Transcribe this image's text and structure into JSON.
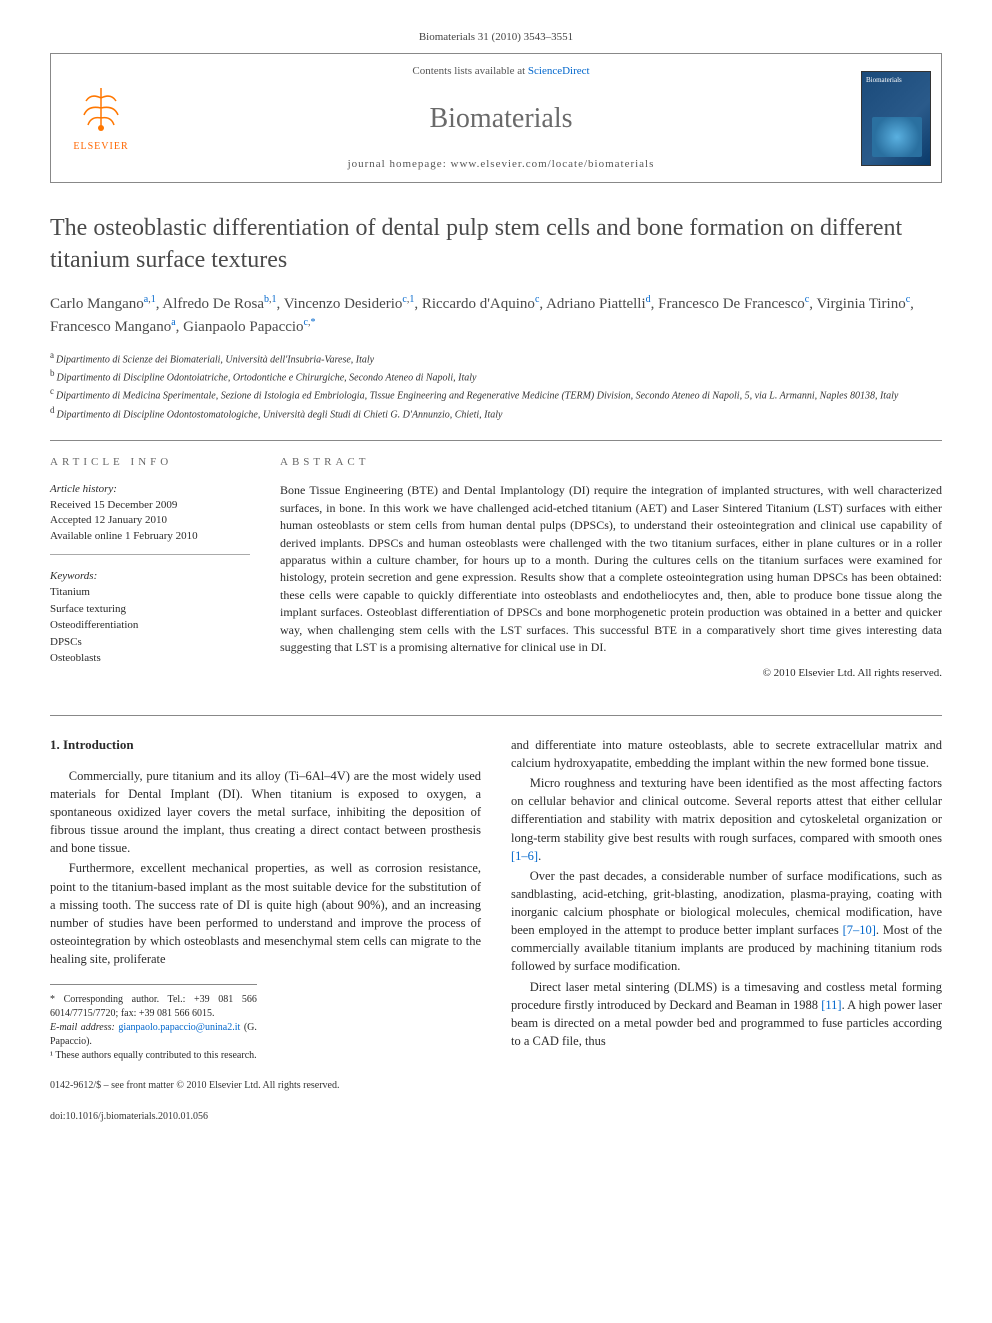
{
  "citation": "Biomaterials 31 (2010) 3543–3551",
  "header": {
    "contents_prefix": "Contents lists available at ",
    "sd": "ScienceDirect",
    "journal": "Biomaterials",
    "homepage_prefix": "journal homepage: ",
    "homepage": "www.elsevier.com/locate/biomaterials",
    "publisher": "ELSEVIER"
  },
  "title": "The osteoblastic differentiation of dental pulp stem cells and bone formation on different titanium surface textures",
  "authors": [
    {
      "name": "Carlo Mangano",
      "aff": "a,1"
    },
    {
      "name": "Alfredo De Rosa",
      "aff": "b,1"
    },
    {
      "name": "Vincenzo Desiderio",
      "aff": "c,1"
    },
    {
      "name": "Riccardo d'Aquino",
      "aff": "c"
    },
    {
      "name": "Adriano Piattelli",
      "aff": "d"
    },
    {
      "name": "Francesco De Francesco",
      "aff": "c"
    },
    {
      "name": "Virginia Tirino",
      "aff": "c"
    },
    {
      "name": "Francesco Mangano",
      "aff": "a"
    },
    {
      "name": "Gianpaolo Papaccio",
      "aff": "c,*"
    }
  ],
  "affiliations": [
    {
      "key": "a",
      "text": "Dipartimento di Scienze dei Biomateriali, Università dell'Insubria-Varese, Italy"
    },
    {
      "key": "b",
      "text": "Dipartimento di Discipline Odontoiatriche, Ortodontiche e Chirurgiche, Secondo Ateneo di Napoli, Italy"
    },
    {
      "key": "c",
      "text": "Dipartimento di Medicina Sperimentale, Sezione di Istologia ed Embriologia, Tissue Engineering and Regenerative Medicine (TERM) Division, Secondo Ateneo di Napoli, 5, via L. Armanni, Naples 80138, Italy"
    },
    {
      "key": "d",
      "text": "Dipartimento di Discipline Odontostomatologiche, Università degli Studi di Chieti G. D'Annunzio, Chieti, Italy"
    }
  ],
  "info": {
    "heading": "ARTICLE INFO",
    "history_label": "Article history:",
    "received": "Received 15 December 2009",
    "accepted": "Accepted 12 January 2010",
    "online": "Available online 1 February 2010",
    "keywords_label": "Keywords:",
    "keywords": [
      "Titanium",
      "Surface texturing",
      "Osteodifferentiation",
      "DPSCs",
      "Osteoblasts"
    ]
  },
  "abstract": {
    "heading": "ABSTRACT",
    "text": "Bone Tissue Engineering (BTE) and Dental Implantology (DI) require the integration of implanted structures, with well characterized surfaces, in bone. In this work we have challenged acid-etched titanium (AET) and Laser Sintered Titanium (LST) surfaces with either human osteoblasts or stem cells from human dental pulps (DPSCs), to understand their osteointegration and clinical use capability of derived implants. DPSCs and human osteoblasts were challenged with the two titanium surfaces, either in plane cultures or in a roller apparatus within a culture chamber, for hours up to a month. During the cultures cells on the titanium surfaces were examined for histology, protein secretion and gene expression. Results show that a complete osteointegration using human DPSCs has been obtained: these cells were capable to quickly differentiate into osteoblasts and endotheliocytes and, then, able to produce bone tissue along the implant surfaces. Osteoblast differentiation of DPSCs and bone morphogenetic protein production was obtained in a better and quicker way, when challenging stem cells with the LST surfaces. This successful BTE in a comparatively short time gives interesting data suggesting that LST is a promising alternative for clinical use in DI.",
    "copyright": "© 2010 Elsevier Ltd. All rights reserved."
  },
  "body": {
    "section_num": "1.",
    "section_title": "Introduction",
    "left_paras": [
      "Commercially, pure titanium and its alloy (Ti–6Al–4V) are the most widely used materials for Dental Implant (DI). When titanium is exposed to oxygen, a spontaneous oxidized layer covers the metal surface, inhibiting the deposition of fibrous tissue around the implant, thus creating a direct contact between prosthesis and bone tissue.",
      "Furthermore, excellent mechanical properties, as well as corrosion resistance, point to the titanium-based implant as the most suitable device for the substitution of a missing tooth. The success rate of DI is quite high (about 90%), and an increasing number of studies have been performed to understand and improve the process of osteointegration by which osteoblasts and mesenchymal stem cells can migrate to the healing site, proliferate"
    ],
    "right_paras": [
      "and differentiate into mature osteoblasts, able to secrete extracellular matrix and calcium hydroxyapatite, embedding the implant within the new formed bone tissue.",
      "Micro roughness and texturing have been identified as the most affecting factors on cellular behavior and clinical outcome. Several reports attest that either cellular differentiation and stability with matrix deposition and cytoskeletal organization or long-term stability give best results with rough surfaces, compared with smooth ones ",
      "Over the past decades, a considerable number of surface modifications, such as sandblasting, acid-etching, grit-blasting, anodization, plasma-praying, coating with inorganic calcium phosphate or biological molecules, chemical modification, have been employed in the attempt to produce better implant surfaces ",
      "Direct laser metal sintering (DLMS) is a timesaving and costless metal forming procedure firstly introduced by Deckard and Beaman in 1988 "
    ],
    "cite1": "[1–6]",
    "cite2": "[7–10]",
    "cite2_tail": ". Most of the commercially available titanium implants are produced by machining titanium rods followed by surface modification.",
    "cite3": "[11]",
    "cite3_tail": ". A high power laser beam is directed on a metal powder bed and programmed to fuse particles according to a CAD file, thus"
  },
  "footnotes": {
    "corr": "* Corresponding author. Tel.: +39 081 566 6014/7715/7720; fax: +39 081 566 6015.",
    "email_label": "E-mail address: ",
    "email": "gianpaolo.papaccio@unina2.it",
    "email_tail": " (G. Papaccio).",
    "contrib": "¹ These authors equally contributed to this research."
  },
  "footer": {
    "issn": "0142-9612/$ – see front matter © 2010 Elsevier Ltd. All rights reserved.",
    "doi": "doi:10.1016/j.biomaterials.2010.01.056"
  },
  "colors": {
    "link": "#0066cc",
    "text": "#2a2a2a",
    "heading_gray": "#4a4a4a",
    "orange": "#ff6600"
  }
}
